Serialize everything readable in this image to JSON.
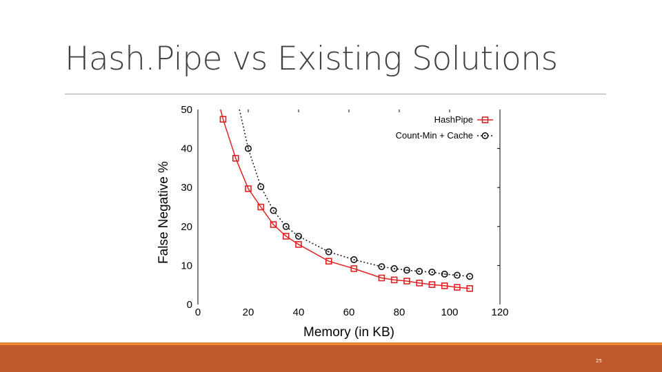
{
  "slide": {
    "title": "Hash.Pipe vs Existing Solutions",
    "page_number": "25"
  },
  "colors": {
    "accent_bar": "#c0592b",
    "accent_stripe": "#e8892f",
    "series_hashpipe": "#e02020",
    "series_countmin": "#111111"
  },
  "chart_data": {
    "type": "line",
    "xlabel": "Memory (in KB)",
    "ylabel": "False Negative %",
    "xlim": [
      0,
      120
    ],
    "ylim": [
      0,
      50
    ],
    "x_ticks": [
      "0",
      "20",
      "40",
      "60",
      "80",
      "100",
      "120"
    ],
    "y_ticks": [
      "0",
      "10",
      "20",
      "30",
      "40",
      "50"
    ],
    "grid": false,
    "legend_position": "top-right",
    "series": [
      {
        "name": "HashPipe",
        "marker": "square",
        "line_style": "solid",
        "x": [
          10,
          15,
          20,
          25,
          30,
          35,
          40,
          52,
          62,
          73,
          78,
          83,
          88,
          93,
          98,
          103,
          108
        ],
        "y": [
          47.5,
          37.5,
          29.7,
          25.0,
          20.5,
          17.5,
          15.4,
          11.1,
          9.2,
          6.8,
          6.3,
          6.0,
          5.5,
          5.1,
          4.8,
          4.4,
          4.1
        ],
        "curve_start": {
          "x": 9,
          "y": 50
        }
      },
      {
        "name": "Count-Min + Cache",
        "marker": "circle",
        "line_style": "dotted",
        "x": [
          20,
          25,
          30,
          35,
          40,
          52,
          62,
          73,
          78,
          83,
          88,
          93,
          98,
          103,
          108
        ],
        "y": [
          40.0,
          30.2,
          24.1,
          20.0,
          17.5,
          13.5,
          11.5,
          9.7,
          9.2,
          8.8,
          8.5,
          8.3,
          7.8,
          7.5,
          7.2
        ],
        "curve_start": {
          "x": 16.5,
          "y": 50
        }
      }
    ]
  }
}
